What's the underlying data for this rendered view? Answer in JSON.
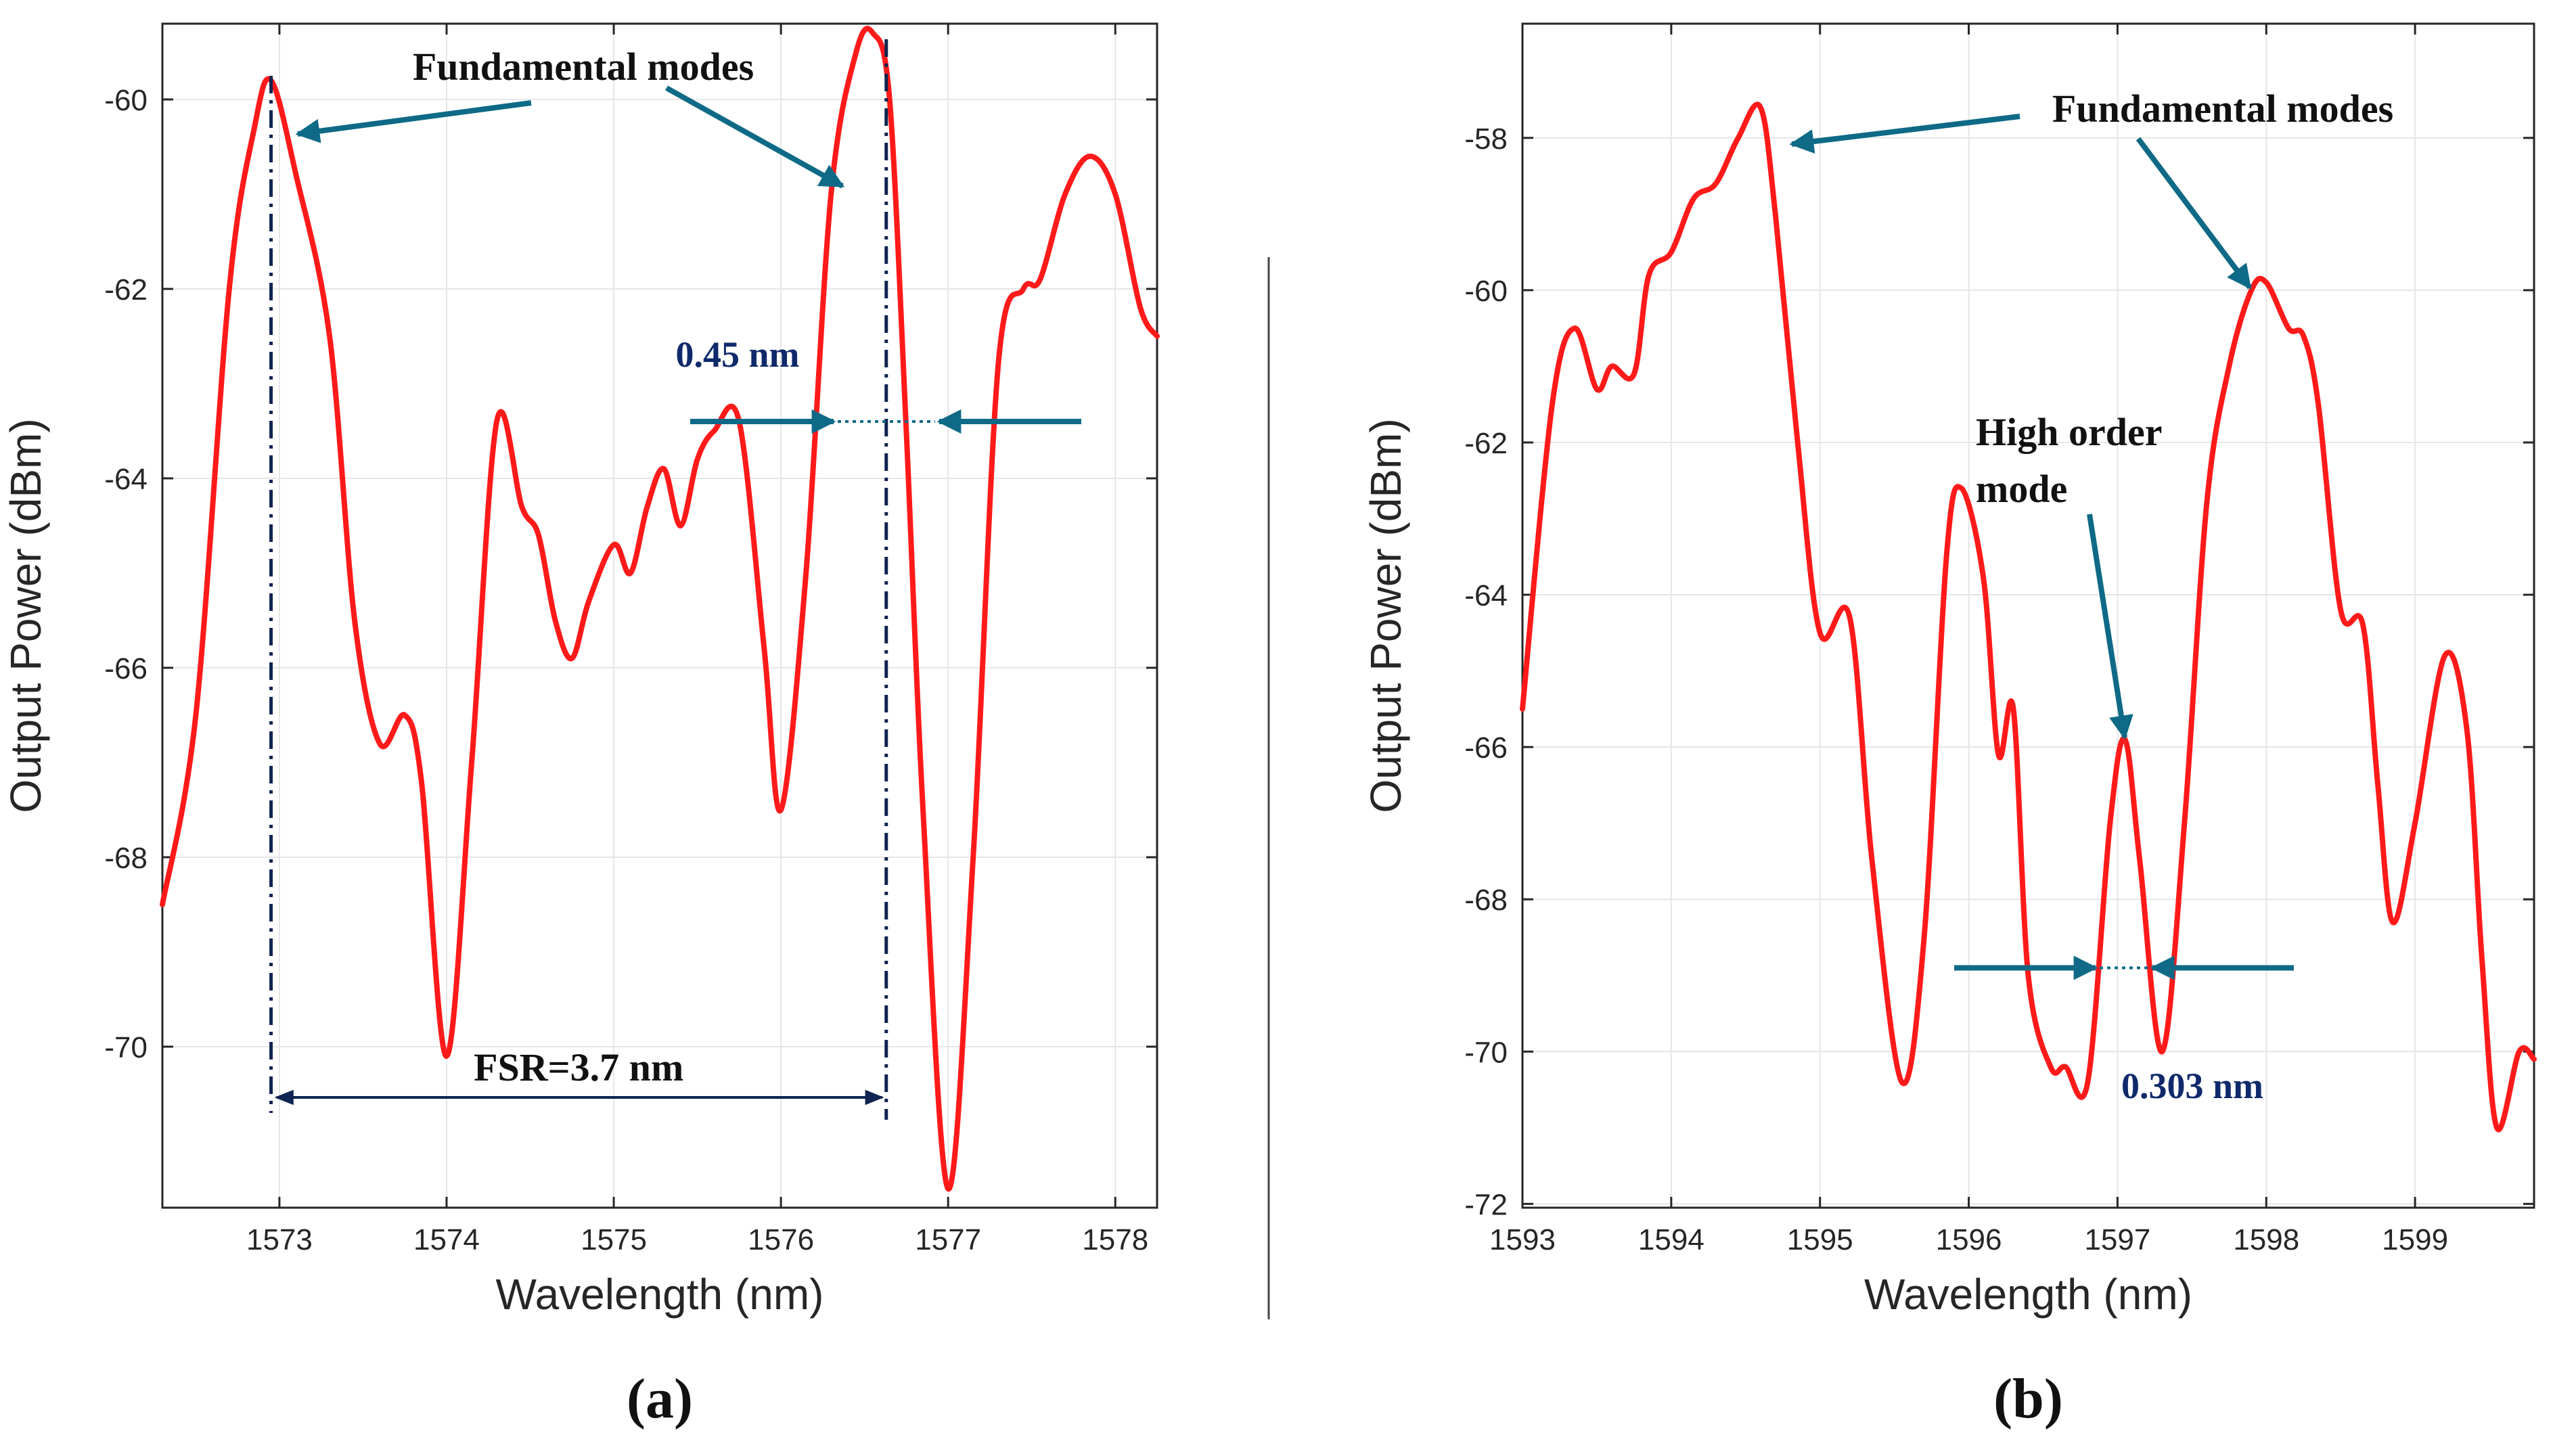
{
  "colors": {
    "curve": "#ff1a1a",
    "arrow": "#0e6a86",
    "dashline": "#0f2450",
    "grid": "#e6e6e6",
    "axis": "#262626"
  },
  "chart_data": [
    {
      "type": "line",
      "panel_label": "(a)",
      "xlabel": "Wavelength (nm)",
      "ylabel": "Output Power (dBm)",
      "xlim": [
        1572.3,
        1578.25
      ],
      "ylim": [
        -71.7,
        -59.2
      ],
      "xticks": [
        1573,
        1574,
        1575,
        1576,
        1577,
        1578
      ],
      "yticks": [
        -60,
        -62,
        -64,
        -66,
        -68,
        -70
      ],
      "grid": true,
      "series": [
        {
          "x": [
            1572.3,
            1572.5,
            1572.7,
            1572.85,
            1572.95,
            1573.1,
            1573.3,
            1573.45,
            1573.6,
            1573.75,
            1573.85,
            1574.0,
            1574.15,
            1574.3,
            1574.45,
            1574.55,
            1574.65,
            1574.75,
            1574.85,
            1575.0,
            1575.1,
            1575.2,
            1575.3,
            1575.4,
            1575.5,
            1575.6,
            1575.75,
            1575.9,
            1576.0,
            1576.15,
            1576.3,
            1576.45,
            1576.55,
            1576.65,
            1576.75,
            1576.85,
            1577.0,
            1577.15,
            1577.3,
            1577.45,
            1577.55,
            1577.7,
            1577.85,
            1578.0,
            1578.15,
            1578.25
          ],
          "y": [
            -68.5,
            -66.5,
            -62.0,
            -60.3,
            -59.8,
            -60.8,
            -62.5,
            -65.5,
            -66.8,
            -66.5,
            -67.2,
            -70.1,
            -67.0,
            -63.4,
            -64.3,
            -64.6,
            -65.5,
            -65.9,
            -65.3,
            -64.7,
            -65.0,
            -64.3,
            -63.9,
            -64.5,
            -63.8,
            -63.5,
            -63.4,
            -65.8,
            -67.5,
            -65.0,
            -61.0,
            -59.5,
            -59.3,
            -60.0,
            -63.5,
            -67.5,
            -71.5,
            -68.0,
            -62.8,
            -62.0,
            -61.9,
            -61.0,
            -60.6,
            -61.0,
            -62.2,
            -62.5
          ]
        }
      ],
      "annotations": {
        "fundamental_modes": "Fundamental modes",
        "linewidth": "0.45 nm",
        "fsr": "FSR=3.7 nm",
        "peak_left_x": 1572.95,
        "peak_right_x": 1576.63,
        "linewidth_y": -63.4
      }
    },
    {
      "type": "line",
      "panel_label": "(b)",
      "xlabel": "Wavelength (nm)",
      "ylabel": "Output Power (dBm)",
      "xlim": [
        1593.0,
        1599.8
      ],
      "ylim": [
        -72.05,
        -56.5
      ],
      "xticks": [
        1593,
        1594,
        1595,
        1596,
        1597,
        1598,
        1599
      ],
      "yticks": [
        -58,
        -60,
        -62,
        -64,
        -66,
        -68,
        -70,
        -72
      ],
      "grid": true,
      "series": [
        {
          "x": [
            1593.0,
            1593.2,
            1593.35,
            1593.5,
            1593.6,
            1593.75,
            1593.85,
            1594.0,
            1594.15,
            1594.3,
            1594.45,
            1594.6,
            1594.7,
            1594.85,
            1595.0,
            1595.2,
            1595.35,
            1595.55,
            1595.7,
            1595.85,
            1595.95,
            1596.1,
            1596.2,
            1596.3,
            1596.4,
            1596.55,
            1596.65,
            1596.8,
            1596.95,
            1597.05,
            1597.15,
            1597.3,
            1597.45,
            1597.6,
            1597.75,
            1597.9,
            1598.0,
            1598.15,
            1598.25,
            1598.35,
            1598.5,
            1598.65,
            1598.75,
            1598.85,
            1599.0,
            1599.2,
            1599.35,
            1599.45,
            1599.55,
            1599.7,
            1599.8
          ],
          "y": [
            -65.5,
            -61.5,
            -60.5,
            -61.3,
            -61.0,
            -61.1,
            -59.8,
            -59.5,
            -58.8,
            -58.6,
            -58.0,
            -57.6,
            -59.0,
            -62.0,
            -64.5,
            -64.3,
            -67.5,
            -70.4,
            -68.5,
            -63.5,
            -62.6,
            -63.8,
            -66.1,
            -65.5,
            -69.0,
            -70.2,
            -70.2,
            -70.4,
            -67.0,
            -65.9,
            -67.5,
            -70.0,
            -67.0,
            -62.8,
            -61.0,
            -60.0,
            -59.9,
            -60.5,
            -60.6,
            -61.5,
            -64.2,
            -64.4,
            -66.5,
            -68.3,
            -67.0,
            -64.8,
            -65.8,
            -68.8,
            -71.0,
            -70.0,
            -70.1
          ]
        }
      ],
      "annotations": {
        "fundamental_modes": "Fundamental modes",
        "high_order_1": "High order",
        "high_order_2": "mode",
        "linewidth": "0.303 nm",
        "linewidth_y": -68.9
      }
    }
  ]
}
